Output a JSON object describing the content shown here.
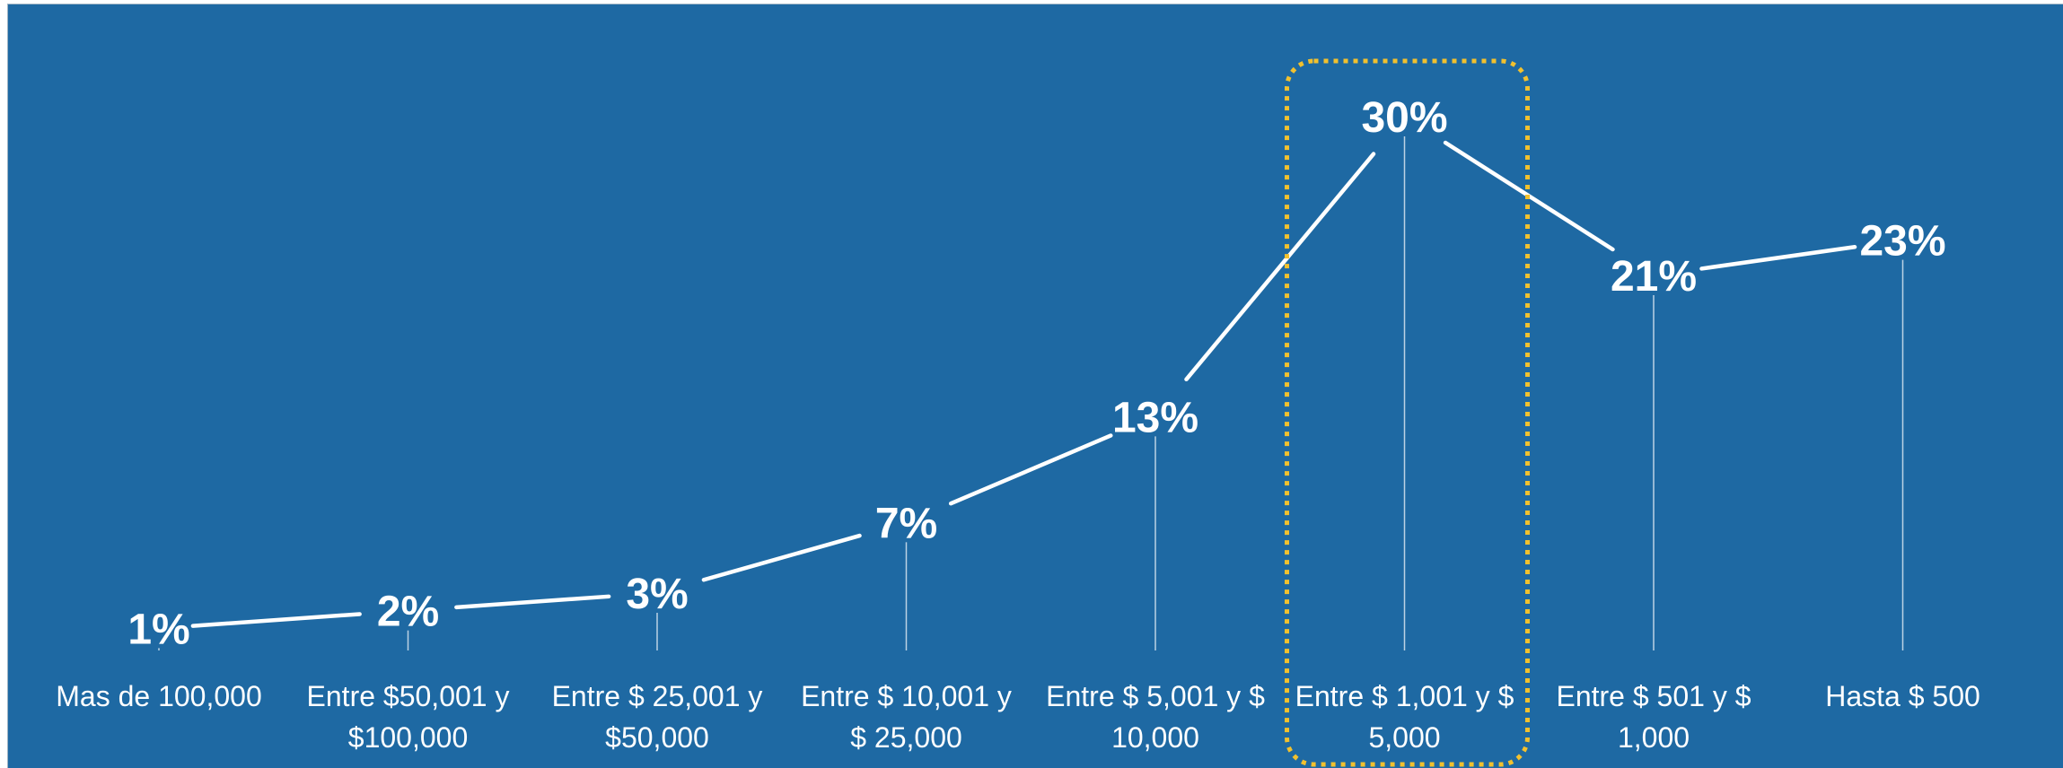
{
  "chart_data": {
    "type": "line",
    "categories": [
      [
        "Mas de 100,000"
      ],
      [
        "Entre $50,001 y",
        "$100,000"
      ],
      [
        "Entre $ 25,001 y",
        "$50,000"
      ],
      [
        "Entre $ 10,001 y",
        "$ 25,000"
      ],
      [
        "Entre $ 5,001 y $",
        "10,000"
      ],
      [
        "Entre $ 1,001 y $",
        "5,000"
      ],
      [
        "Entre $ 501 y $",
        "1,000"
      ],
      [
        "Hasta $ 500"
      ]
    ],
    "values": [
      1,
      2,
      3,
      7,
      13,
      30,
      21,
      23
    ],
    "value_labels": [
      "1%",
      "2%",
      "3%",
      "7%",
      "13%",
      "30%",
      "21%",
      "23%"
    ],
    "highlight_index": 5,
    "colors": {
      "background": "#1e69a3",
      "line": "#ffffff",
      "highlight": "#f2c12e"
    }
  }
}
